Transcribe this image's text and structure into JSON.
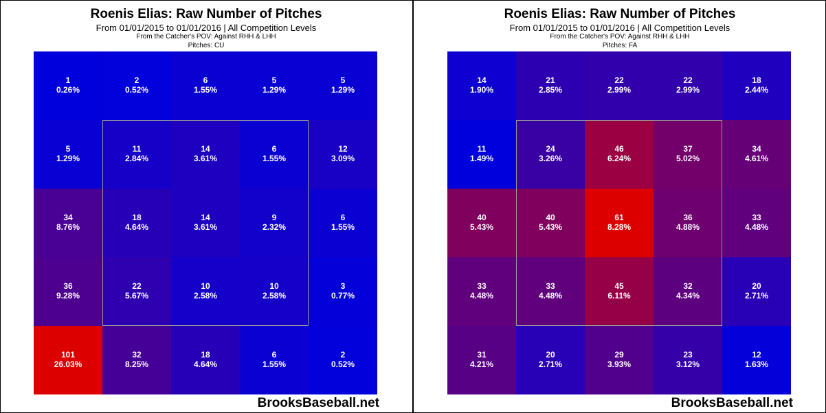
{
  "watermark": "BrooksBaseball.net",
  "chart_data": [
    {
      "type": "heatmap",
      "title": "Roenis Elias: Raw Number of Pitches",
      "subtitle": "From 01/01/2015 to 01/01/2016 | All Competition Levels",
      "perspective": "From the Catcher's POV:  Against RHH & LHH",
      "pitches_label": "Pitches:  CU",
      "rows": 5,
      "cols": 5,
      "counts": [
        [
          1,
          2,
          6,
          5,
          5
        ],
        [
          5,
          11,
          14,
          6,
          12
        ],
        [
          34,
          18,
          14,
          9,
          6
        ],
        [
          36,
          22,
          10,
          10,
          3
        ],
        [
          101,
          32,
          18,
          6,
          2
        ]
      ],
      "percents": [
        [
          "0.26%",
          "0.52%",
          "1.55%",
          "1.29%",
          "1.29%"
        ],
        [
          "1.29%",
          "2.84%",
          "3.61%",
          "1.55%",
          "3.09%"
        ],
        [
          "8.76%",
          "4.64%",
          "3.61%",
          "2.32%",
          "1.55%"
        ],
        [
          "9.28%",
          "5.67%",
          "2.58%",
          "2.58%",
          "0.77%"
        ],
        [
          "26.03%",
          "8.25%",
          "4.64%",
          "1.55%",
          "0.52%"
        ]
      ],
      "color_low": "#0000dd",
      "color_high": "#dd0000"
    },
    {
      "type": "heatmap",
      "title": "Roenis Elias: Raw Number of Pitches",
      "subtitle": "From 01/01/2015 to 01/01/2016 | All Competition Levels",
      "perspective": "From the Catcher's POV:  Against RHH & LHH",
      "pitches_label": "Pitches:  FA",
      "rows": 5,
      "cols": 5,
      "counts": [
        [
          14,
          21,
          22,
          22,
          18
        ],
        [
          11,
          24,
          46,
          37,
          34
        ],
        [
          40,
          40,
          61,
          36,
          33
        ],
        [
          33,
          33,
          45,
          32,
          20
        ],
        [
          31,
          20,
          29,
          23,
          12
        ]
      ],
      "percents": [
        [
          "1.90%",
          "2.85%",
          "2.99%",
          "2.99%",
          "2.44%"
        ],
        [
          "1.49%",
          "3.26%",
          "6.24%",
          "5.02%",
          "4.61%"
        ],
        [
          "5.43%",
          "5.43%",
          "8.28%",
          "4.88%",
          "4.48%"
        ],
        [
          "4.48%",
          "4.48%",
          "6.11%",
          "4.34%",
          "2.71%"
        ],
        [
          "4.21%",
          "2.71%",
          "3.93%",
          "3.12%",
          "1.63%"
        ]
      ],
      "color_low": "#0000dd",
      "color_high": "#dd0000"
    }
  ]
}
